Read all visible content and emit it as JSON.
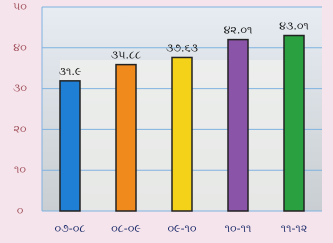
{
  "chart_data": {
    "type": "bar",
    "categories": [
      "૦૭-૦૮",
      "૦૮-૦૯",
      "૦૯-૧૦",
      "૧૦-૧૧",
      "૧૧-૧૨"
    ],
    "values": [
      31.9,
      35.88,
      37.63,
      42.01,
      43.01
    ],
    "value_labels": [
      "૩૧.૯",
      "૩૫.૮૮",
      "૩૭.૬૩",
      "૪૨.૦૧",
      "૪૩.૦૧"
    ],
    "colors": [
      "#1f7fd4",
      "#f08a1c",
      "#f5d21a",
      "#8a55a8",
      "#2aa040"
    ],
    "ylim": [
      0,
      50
    ],
    "yticks": [
      {
        "value": 0,
        "label": "૦"
      },
      {
        "value": 10,
        "label": "૧૦"
      },
      {
        "value": 20,
        "label": "૨૦"
      },
      {
        "value": 30,
        "label": "૩૦"
      },
      {
        "value": 40,
        "label": "૪૦"
      },
      {
        "value": 50,
        "label": "૫૦"
      }
    ],
    "grid": true
  }
}
